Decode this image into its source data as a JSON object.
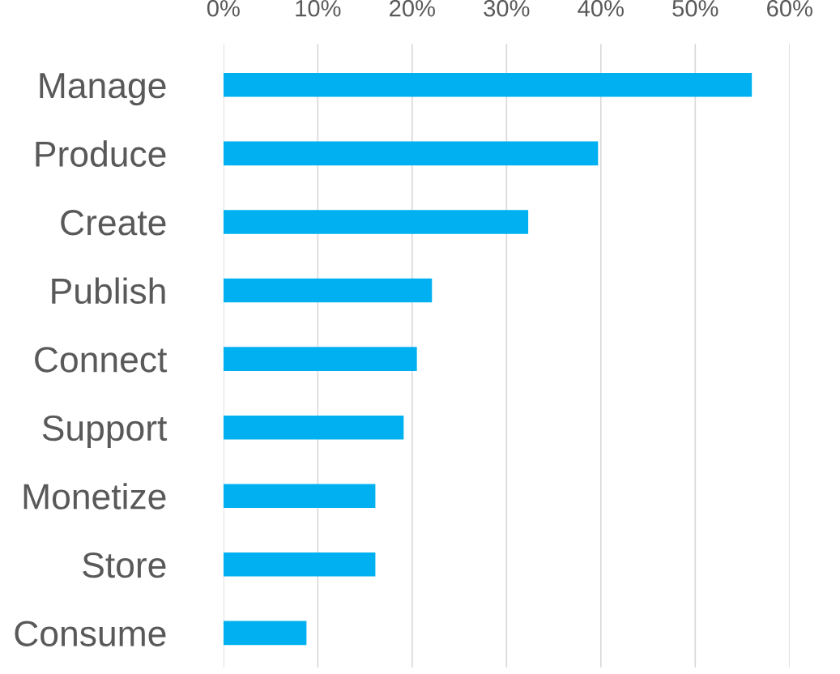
{
  "chart_data": {
    "type": "bar",
    "orientation": "horizontal",
    "categories": [
      "Manage",
      "Produce",
      "Create",
      "Publish",
      "Connect",
      "Support",
      "Monetize",
      "Store",
      "Consume"
    ],
    "values": [
      56,
      39.7,
      32.3,
      22.1,
      20.5,
      19.1,
      16.1,
      16.1,
      8.8
    ],
    "color": "#00b0f0",
    "xlim": [
      0,
      60
    ],
    "xticks": [
      {
        "value": 0,
        "label": "0%"
      },
      {
        "value": 10,
        "label": "10%"
      },
      {
        "value": 20,
        "label": "20%"
      },
      {
        "value": 30,
        "label": "30%"
      },
      {
        "value": 40,
        "label": "40%"
      },
      {
        "value": 50,
        "label": "50%"
      },
      {
        "value": 60,
        "label": "60%"
      }
    ],
    "grid": "x",
    "legend": false
  }
}
